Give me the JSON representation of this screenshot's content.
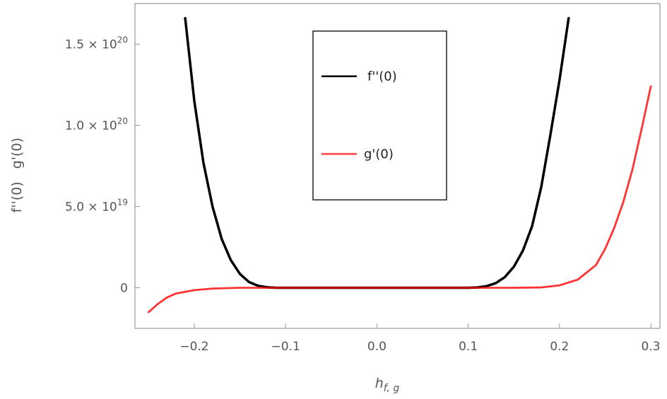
{
  "chart_data": {
    "type": "line",
    "title": "",
    "xlabel": {
      "main": "h",
      "sub": "f, g"
    },
    "ylabel": "f''(0)   g'(0)",
    "xlim": [
      -0.265,
      0.31
    ],
    "ylim": [
      -2.5e+19,
      1.75e+20
    ],
    "x_ticks": [
      {
        "value": -0.2,
        "label": "−0.2"
      },
      {
        "value": -0.1,
        "label": "−0.1"
      },
      {
        "value": 0.0,
        "label": "0.0"
      },
      {
        "value": 0.1,
        "label": "0.1"
      },
      {
        "value": 0.2,
        "label": "0.2"
      },
      {
        "value": 0.3,
        "label": "0.3"
      }
    ],
    "y_ticks": [
      {
        "value": 0,
        "mant": "0",
        "exp": ""
      },
      {
        "value": 5e+19,
        "mant": "5.0 × 10",
        "exp": "19"
      },
      {
        "value": 1e+20,
        "mant": "1.0 × 10",
        "exp": "20"
      },
      {
        "value": 1.5e+20,
        "mant": "1.5 × 10",
        "exp": "20"
      }
    ],
    "grid": false,
    "legend_position": "top-center",
    "series": [
      {
        "name": "f''(0)",
        "color": "#000000",
        "points": [
          [
            -0.21,
            1.66e+20
          ],
          [
            -0.2,
            1.15e+20
          ],
          [
            -0.19,
            7.7e+19
          ],
          [
            -0.18,
            5e+19
          ],
          [
            -0.17,
            3e+19
          ],
          [
            -0.16,
            1.7e+19
          ],
          [
            -0.15,
            8.5e+18
          ],
          [
            -0.14,
            3.5e+18
          ],
          [
            -0.13,
            1.2e+18
          ],
          [
            -0.12,
            3e+17
          ],
          [
            -0.11,
            0
          ],
          [
            -0.1,
            0
          ],
          [
            0.0,
            0
          ],
          [
            0.1,
            0
          ],
          [
            0.11,
            2e+17
          ],
          [
            0.12,
            1e+18
          ],
          [
            0.13,
            2.8e+18
          ],
          [
            0.14,
            6.5e+18
          ],
          [
            0.15,
            1.3e+19
          ],
          [
            0.16,
            2.3e+19
          ],
          [
            0.17,
            3.8e+19
          ],
          [
            0.18,
            6.2e+19
          ],
          [
            0.19,
            9.4e+19
          ],
          [
            0.2,
            1.28e+20
          ],
          [
            0.21,
            1.66e+20
          ]
        ]
      },
      {
        "name": "g'(0)",
        "color": "#ff0000",
        "points": [
          [
            -0.25,
            -1.5e+19
          ],
          [
            -0.24,
            -1e+19
          ],
          [
            -0.23,
            -6e+18
          ],
          [
            -0.22,
            -3.5e+18
          ],
          [
            -0.2,
            -1.5e+18
          ],
          [
            -0.18,
            -5e+17
          ],
          [
            -0.15,
            0
          ],
          [
            0.0,
            0
          ],
          [
            0.15,
            0
          ],
          [
            0.18,
            2e+17
          ],
          [
            0.2,
            1.5e+18
          ],
          [
            0.22,
            5e+18
          ],
          [
            0.24,
            1.4e+19
          ],
          [
            0.25,
            2.4e+19
          ],
          [
            0.26,
            3.7e+19
          ],
          [
            0.27,
            5.3e+19
          ],
          [
            0.28,
            7.3e+19
          ],
          [
            0.29,
            9.8e+19
          ],
          [
            0.3,
            1.24e+20
          ]
        ]
      }
    ]
  }
}
